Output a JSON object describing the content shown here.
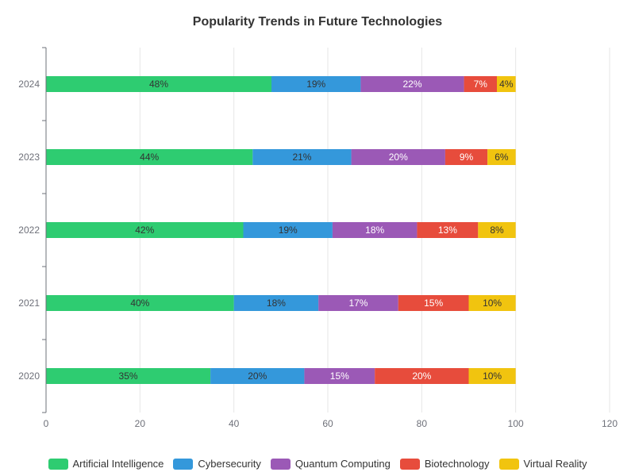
{
  "chart_data": {
    "type": "bar",
    "orientation": "horizontal",
    "stacked": true,
    "title": "Popularity Trends in Future Technologies",
    "categories": [
      "2020",
      "2021",
      "2022",
      "2023",
      "2024"
    ],
    "series": [
      {
        "name": "Artificial Intelligence",
        "color": "#2ecc71",
        "values": [
          35,
          40,
          42,
          44,
          48
        ],
        "labels": [
          "35%",
          "40%",
          "42%",
          "44%",
          "48%"
        ]
      },
      {
        "name": "Cybersecurity",
        "color": "#3498db",
        "values": [
          20,
          18,
          19,
          21,
          19
        ],
        "labels": [
          "20%",
          "18%",
          "19%",
          "21%",
          "19%"
        ]
      },
      {
        "name": "Quantum Computing",
        "color": "#9b59b6",
        "values": [
          15,
          17,
          18,
          20,
          22
        ],
        "labels": [
          "15%",
          "17%",
          "18%",
          "20%",
          "22%"
        ]
      },
      {
        "name": "Biotechnology",
        "color": "#e74c3c",
        "values": [
          20,
          15,
          13,
          9,
          7
        ],
        "labels": [
          "20%",
          "15%",
          "13%",
          "9%",
          "7%"
        ]
      },
      {
        "name": "Virtual Reality",
        "color": "#f1c40f",
        "values": [
          10,
          10,
          8,
          6,
          4
        ],
        "labels": [
          "10%",
          "10%",
          "8%",
          "6%",
          "4%"
        ]
      }
    ],
    "xlim": [
      0,
      120
    ],
    "x_ticks": [
      "0",
      "20",
      "40",
      "60",
      "80",
      "100",
      "120"
    ],
    "grid": true,
    "legend_position": "bottom"
  }
}
